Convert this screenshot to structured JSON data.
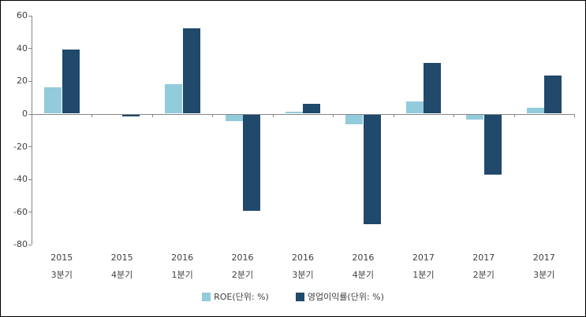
{
  "chart_data": {
    "type": "bar",
    "title": "",
    "xlabel": "",
    "ylabel": "",
    "grid": false,
    "legend_position": "bottom",
    "ylim": [
      -80,
      60
    ],
    "yticks": [
      60,
      40,
      20,
      0,
      -20,
      -40,
      -60,
      -80
    ],
    "categories": [
      {
        "line1": "2015",
        "line2": "3분기"
      },
      {
        "line1": "2015",
        "line2": "4분기"
      },
      {
        "line1": "2016",
        "line2": "1분기"
      },
      {
        "line1": "2016",
        "line2": "2분기"
      },
      {
        "line1": "2016",
        "line2": "3분기"
      },
      {
        "line1": "2016",
        "line2": "4분기"
      },
      {
        "line1": "2017",
        "line2": "1분기"
      },
      {
        "line1": "2017",
        "line2": "2분기"
      },
      {
        "line1": "2017",
        "line2": "3분기"
      }
    ],
    "series": [
      {
        "name": "ROE(단위: %)",
        "color": "#92CBDC",
        "values": [
          16,
          0,
          18,
          -4,
          1,
          -6,
          7.5,
          -3,
          3.5
        ]
      },
      {
        "name": "영업이익률(단위: %)",
        "color": "#20496B",
        "values": [
          39,
          -1,
          52,
          -59,
          6,
          -67,
          31,
          -37,
          23.5
        ]
      }
    ],
    "axis_color": "#868686",
    "text_color": "#3f3f3f"
  }
}
